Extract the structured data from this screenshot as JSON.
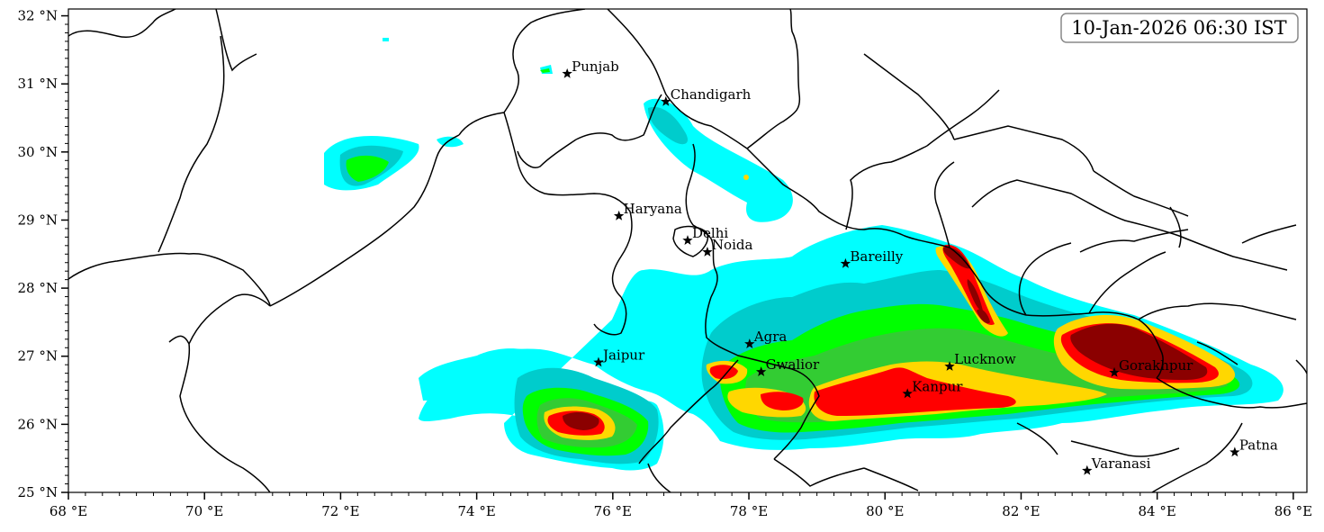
{
  "timestamp": "10-Jan-2026 06:30 IST",
  "axes": {
    "x_ticks": [
      {
        "value": 68,
        "label": "68 °E"
      },
      {
        "value": 70,
        "label": "70 °E"
      },
      {
        "value": 72,
        "label": "72 °E"
      },
      {
        "value": 74,
        "label": "74 °E"
      },
      {
        "value": 76,
        "label": "76 °E"
      },
      {
        "value": 78,
        "label": "78 °E"
      },
      {
        "value": 80,
        "label": "80 °E"
      },
      {
        "value": 82,
        "label": "82 °E"
      },
      {
        "value": 84,
        "label": "84 °E"
      },
      {
        "value": 86,
        "label": "86 °E"
      }
    ],
    "y_ticks": [
      {
        "value": 25,
        "label": "25 °N"
      },
      {
        "value": 26,
        "label": "26 °N"
      },
      {
        "value": 27,
        "label": "27 °N"
      },
      {
        "value": 28,
        "label": "28 °N"
      },
      {
        "value": 29,
        "label": "29 °N"
      },
      {
        "value": 30,
        "label": "30 °N"
      },
      {
        "value": 31,
        "label": "31 °N"
      },
      {
        "value": 32,
        "label": "32 °N"
      }
    ],
    "lon_range": [
      68,
      86.2
    ],
    "lat_range": [
      25,
      32.1
    ]
  },
  "cities": [
    {
      "name": "Punjab",
      "lon": 75.33,
      "lat": 31.15
    },
    {
      "name": "Chandigarh",
      "lon": 76.78,
      "lat": 30.74
    },
    {
      "name": "Haryana",
      "lon": 76.09,
      "lat": 29.06
    },
    {
      "name": "Delhi",
      "lon": 77.1,
      "lat": 28.7
    },
    {
      "name": "Noida",
      "lon": 77.39,
      "lat": 28.53
    },
    {
      "name": "Bareilly",
      "lon": 79.42,
      "lat": 28.36
    },
    {
      "name": "Agra",
      "lon": 78.01,
      "lat": 27.18
    },
    {
      "name": "Jaipur",
      "lon": 75.79,
      "lat": 26.91
    },
    {
      "name": "Gwalior",
      "lon": 78.18,
      "lat": 26.77
    },
    {
      "name": "Lucknow",
      "lon": 80.95,
      "lat": 26.85
    },
    {
      "name": "Kanpur",
      "lon": 80.33,
      "lat": 26.45
    },
    {
      "name": "Gorakhpur",
      "lon": 83.37,
      "lat": 26.76
    },
    {
      "name": "Varanasi",
      "lon": 82.97,
      "lat": 25.32
    },
    {
      "name": "Patna",
      "lon": 85.14,
      "lat": 25.59
    }
  ],
  "colors": {
    "level1": "#00ffff",
    "level2": "#00cccc",
    "level3": "#00ff00",
    "level4": "#33cc33",
    "level5": "#ffd700",
    "level6": "#ff0000",
    "level7": "#8b0000",
    "boundary": "#000000"
  }
}
